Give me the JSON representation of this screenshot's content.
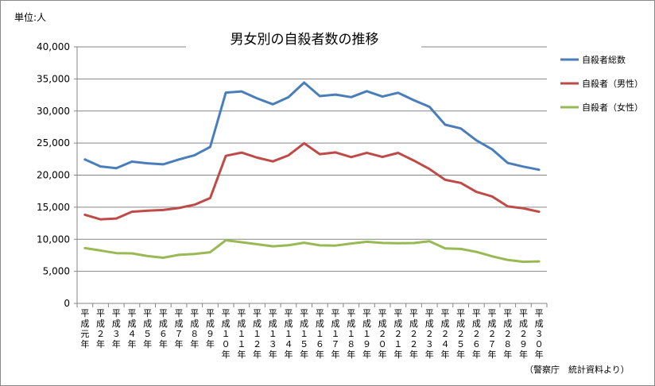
{
  "unit_label": "単位:人",
  "source_note": "（警察庁　統計資料より）",
  "chart_data": {
    "type": "line",
    "title": "男女別の自殺者数の推移",
    "ylabel": "単位:人",
    "ylim": [
      0,
      40000
    ],
    "yticks": [
      0,
      5000,
      10000,
      15000,
      20000,
      25000,
      30000,
      35000,
      40000
    ],
    "ytick_labels": [
      "0",
      "5,000",
      "10,000",
      "15,000",
      "20,000",
      "25,000",
      "30,000",
      "35,000",
      "40,000"
    ],
    "grid": true,
    "legend_position": "right",
    "categories": [
      "平成元年",
      "平成２年",
      "平成３年",
      "平成４年",
      "平成５年",
      "平成６年",
      "平成７年",
      "平成８年",
      "平成９年",
      "平成１０年",
      "平成１１年",
      "平成１２年",
      "平成１３年",
      "平成１４年",
      "平成１５年",
      "平成１６年",
      "平成１７年",
      "平成１８年",
      "平成１９年",
      "平成２０年",
      "平成２１年",
      "平成２２年",
      "平成２３年",
      "平成２４年",
      "平成２５年",
      "平成２６年",
      "平成２７年",
      "平成２８年",
      "平成２９年",
      "平成３０年"
    ],
    "series": [
      {
        "name": "自殺者総数",
        "color": "#4a7ebb",
        "values": [
          22436,
          21346,
          21084,
          22104,
          21851,
          21679,
          22445,
          23104,
          24391,
          32863,
          33048,
          31957,
          31042,
          32143,
          34427,
          32325,
          32552,
          32155,
          33093,
          32249,
          32845,
          31690,
          30651,
          27858,
          27283,
          25427,
          24025,
          21897,
          21321,
          20840
        ]
      },
      {
        "name": "自殺者（男性）",
        "color": "#be4b48",
        "values": [
          13818,
          13100,
          13242,
          14296,
          14468,
          14560,
          14874,
          15393,
          16416,
          23013,
          23512,
          22727,
          22144,
          23080,
          24963,
          23272,
          23540,
          22813,
          23478,
          22831,
          23472,
          22283,
          20955,
          19273,
          18787,
          17386,
          16681,
          15121,
          14826,
          14290
        ]
      },
      {
        "name": "自殺者（女性）",
        "color": "#98b954",
        "values": [
          8618,
          8246,
          7842,
          7808,
          7383,
          7119,
          7571,
          7711,
          7975,
          9850,
          9536,
          9230,
          8898,
          9063,
          9464,
          9053,
          9012,
          9342,
          9615,
          9418,
          9373,
          9407,
          9696,
          8585,
          8496,
          8041,
          7344,
          6776,
          6495,
          6550
        ]
      }
    ]
  }
}
